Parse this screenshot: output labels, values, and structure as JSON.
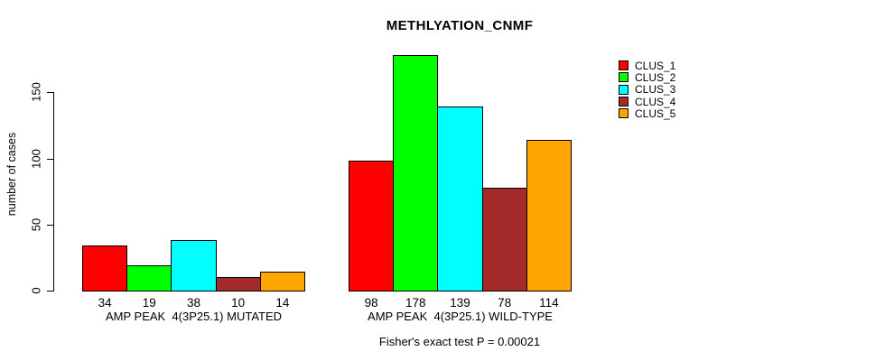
{
  "chart_data": {
    "type": "bar",
    "title": "METHLYATION_CNMF",
    "ylabel": "number of cases",
    "xlabel": "",
    "annotation": "Fisher's exact test P = 0.00021",
    "yticks": [
      0,
      50,
      100,
      150
    ],
    "ylim": [
      0,
      178
    ],
    "grid": false,
    "legend_position": "right",
    "categories": [
      "AMP PEAK  4(3P25.1) MUTATED",
      "AMP PEAK  4(3P25.1) WILD-TYPE"
    ],
    "series": [
      {
        "name": "CLUS_1",
        "color": "#ff0000",
        "values": [
          34,
          98
        ]
      },
      {
        "name": "CLUS_2",
        "color": "#00ff00",
        "values": [
          19,
          178
        ]
      },
      {
        "name": "CLUS_3",
        "color": "#00ffff",
        "values": [
          38,
          139
        ]
      },
      {
        "name": "CLUS_4",
        "color": "#a52a2a",
        "values": [
          10,
          78
        ]
      },
      {
        "name": "CLUS_5",
        "color": "#ffa500",
        "values": [
          14,
          114
        ]
      }
    ]
  }
}
